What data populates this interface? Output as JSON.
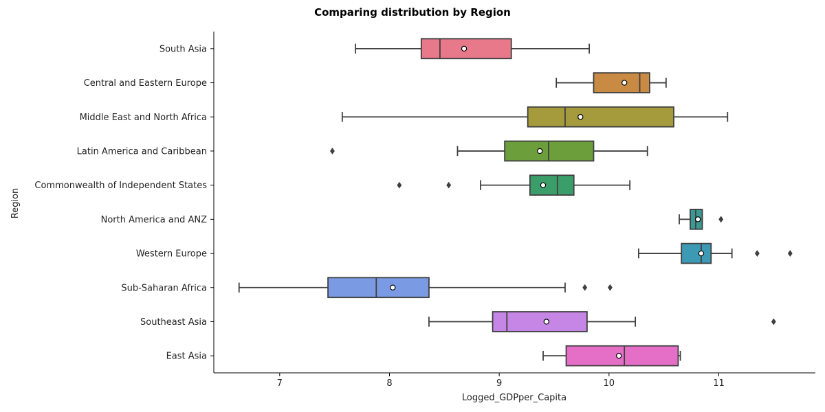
{
  "chart_data": {
    "type": "boxplot",
    "orientation": "horizontal",
    "title": "Comparing distribution by Region",
    "xlabel": "Logged_GDPper_Capita",
    "ylabel": "Region",
    "xlim": [
      6.4,
      11.88
    ],
    "xticks": [
      7,
      8,
      9,
      10,
      11
    ],
    "grid": false,
    "box_outline_color": "#3f3f3f",
    "mean_marker": "white circle",
    "outlier_marker": "diamond",
    "categories": [
      "South Asia",
      "Central and Eastern Europe",
      "Middle East and North Africa",
      "Latin America and Caribbean",
      "Commonwealth of Independent States",
      "North America and ANZ",
      "Western Europe",
      "Sub-Saharan Africa",
      "Southeast Asia",
      "East Asia"
    ],
    "boxes": [
      {
        "category": "South Asia",
        "whislo": 7.69,
        "q1": 8.29,
        "med": 8.46,
        "q3": 9.11,
        "whishi": 9.82,
        "mean": 8.68,
        "fliers": [],
        "color": "#e8798b"
      },
      {
        "category": "Central and Eastern Europe",
        "whislo": 9.52,
        "q1": 9.86,
        "med": 10.28,
        "q3": 10.37,
        "whishi": 10.52,
        "mean": 10.14,
        "fliers": [],
        "color": "#c98a44"
      },
      {
        "category": "Middle East and North Africa",
        "whislo": 7.57,
        "q1": 9.26,
        "med": 9.6,
        "q3": 10.59,
        "whishi": 11.08,
        "mean": 9.74,
        "fliers": [],
        "color": "#a59a3c"
      },
      {
        "category": "Latin America and Caribbean",
        "whislo": 8.62,
        "q1": 9.05,
        "med": 9.45,
        "q3": 9.86,
        "whishi": 10.35,
        "mean": 9.37,
        "fliers": [
          7.48
        ],
        "color": "#6d9e3c"
      },
      {
        "category": "Commonwealth of Independent States",
        "whislo": 8.83,
        "q1": 9.28,
        "med": 9.53,
        "q3": 9.68,
        "whishi": 10.19,
        "mean": 9.4,
        "fliers": [
          8.09,
          8.54
        ],
        "color": "#3b9e6a"
      },
      {
        "category": "North America and ANZ",
        "whislo": 10.64,
        "q1": 10.74,
        "med": 10.79,
        "q3": 10.85,
        "whishi": 10.85,
        "mean": 10.81,
        "fliers": [
          11.02
        ],
        "color": "#3a9a92"
      },
      {
        "category": "Western Europe",
        "whislo": 10.27,
        "q1": 10.66,
        "med": 10.84,
        "q3": 10.93,
        "whishi": 11.12,
        "mean": 10.84,
        "fliers": [
          11.35,
          11.65
        ],
        "color": "#3d9ab5"
      },
      {
        "category": "Sub-Saharan Africa",
        "whislo": 6.63,
        "q1": 7.44,
        "med": 7.88,
        "q3": 8.36,
        "whishi": 9.6,
        "mean": 8.03,
        "fliers": [
          9.78,
          10.01
        ],
        "color": "#7a9be3"
      },
      {
        "category": "Southeast Asia",
        "whislo": 8.36,
        "q1": 8.94,
        "med": 9.07,
        "q3": 9.8,
        "whishi": 10.24,
        "mean": 9.43,
        "fliers": [
          11.5
        ],
        "color": "#c586e6"
      },
      {
        "category": "East Asia",
        "whislo": 9.4,
        "q1": 9.61,
        "med": 10.14,
        "q3": 10.63,
        "whishi": 10.65,
        "mean": 10.09,
        "fliers": [],
        "color": "#e56fc6"
      }
    ]
  }
}
